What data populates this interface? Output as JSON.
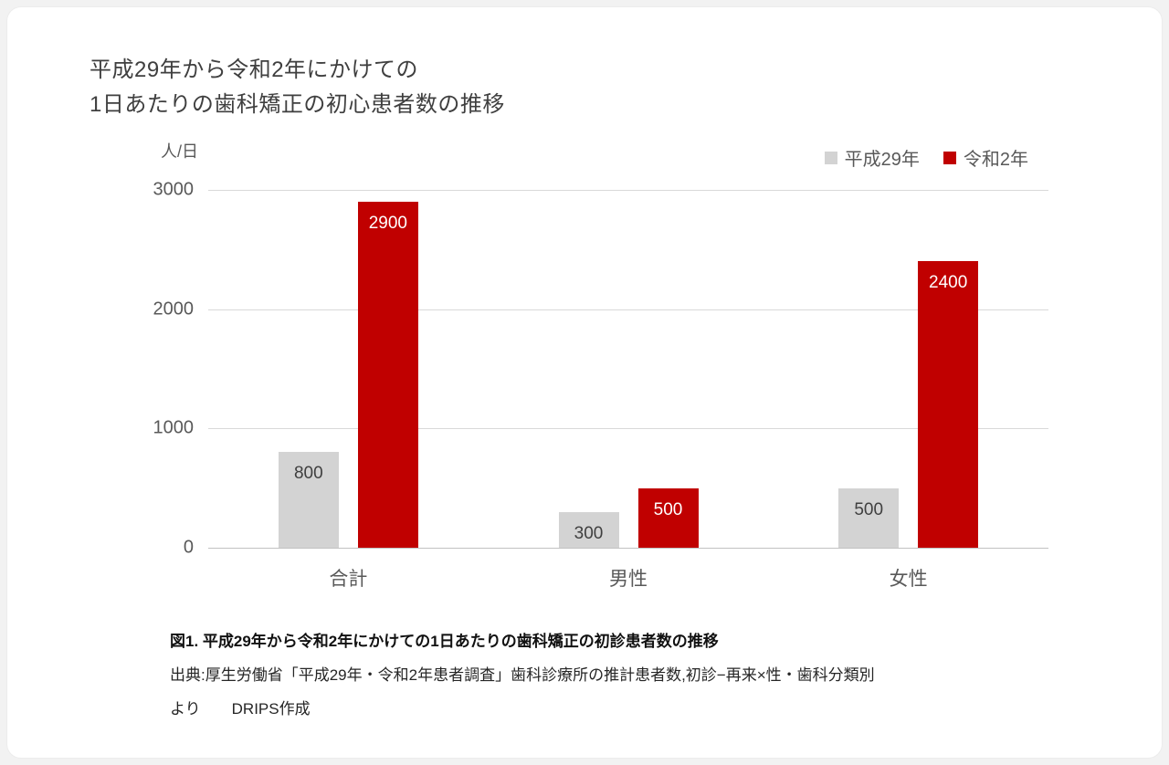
{
  "page": {
    "title_line1": "平成29年から令和2年にかけての",
    "title_line2": "1日あたりの歯科矯正の初心患者数の推移"
  },
  "chart_data": {
    "type": "bar",
    "title": "平成29年から令和2年にかけての1日あたりの歯科矯正の初心患者数の推移",
    "unit_label": "人/日",
    "categories": [
      "合計",
      "男性",
      "女性"
    ],
    "category_keys": [
      "total",
      "male",
      "female"
    ],
    "series": [
      {
        "key": "heisei29",
        "name": "平成29年",
        "color": "#d3d3d3",
        "label_color": "#3f3f3f",
        "values": [
          800,
          300,
          500
        ]
      },
      {
        "key": "reiwa2",
        "name": "令和2年",
        "color": "#c00000",
        "label_color": "#ffffff",
        "values": [
          2900,
          500,
          2400
        ]
      }
    ],
    "ylim": [
      0,
      3000
    ],
    "yticks": [
      0,
      1000,
      2000,
      3000
    ],
    "grid": true,
    "legend_position": "top-right"
  },
  "caption": {
    "figure_label": "図1. 平成29年から令和2年にかけての1日あたりの歯科矯正の初診患者数の推移",
    "source_line1": "出典:厚生労働省「平成29年・令和2年患者調査」歯科診療所の推計患者数,初診−再来×性・歯科分類別",
    "source_line2": "より　　DRIPS作成"
  }
}
